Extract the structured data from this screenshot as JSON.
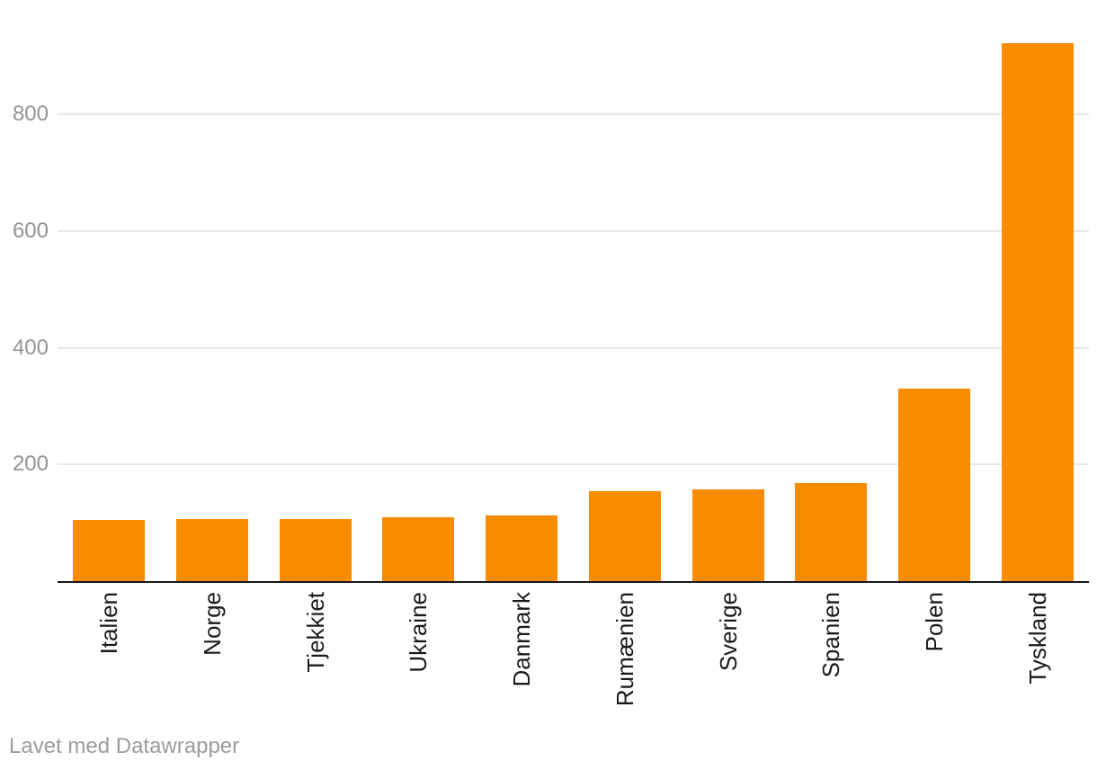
{
  "chart_data": {
    "type": "bar",
    "title": "",
    "xlabel": "",
    "ylabel": "",
    "categories": [
      "Italien",
      "Norge",
      "Tjekkiet",
      "Ukraine",
      "Danmark",
      "Rumænien",
      "Sverige",
      "Spanien",
      "Polen",
      "Tyskland"
    ],
    "values": [
      105,
      106,
      107,
      109,
      113,
      154,
      157,
      168,
      330,
      923
    ],
    "ylim": [
      0,
      950
    ],
    "yticks": [
      200,
      400,
      600,
      800
    ],
    "grid": true,
    "legend": "none",
    "sort_order": "ascending",
    "bar_orientation": "vertical",
    "x_label_rotation": -90,
    "colors": {
      "bar": "#f98c00",
      "gridline": "#e8e8e8",
      "axis_line": "#18181a",
      "y_tick_label": "#949494",
      "x_tick_label": "#1a1a1a"
    }
  },
  "footer": {
    "text": "Lavet med Datawrapper",
    "color": "#9c9c9c"
  }
}
